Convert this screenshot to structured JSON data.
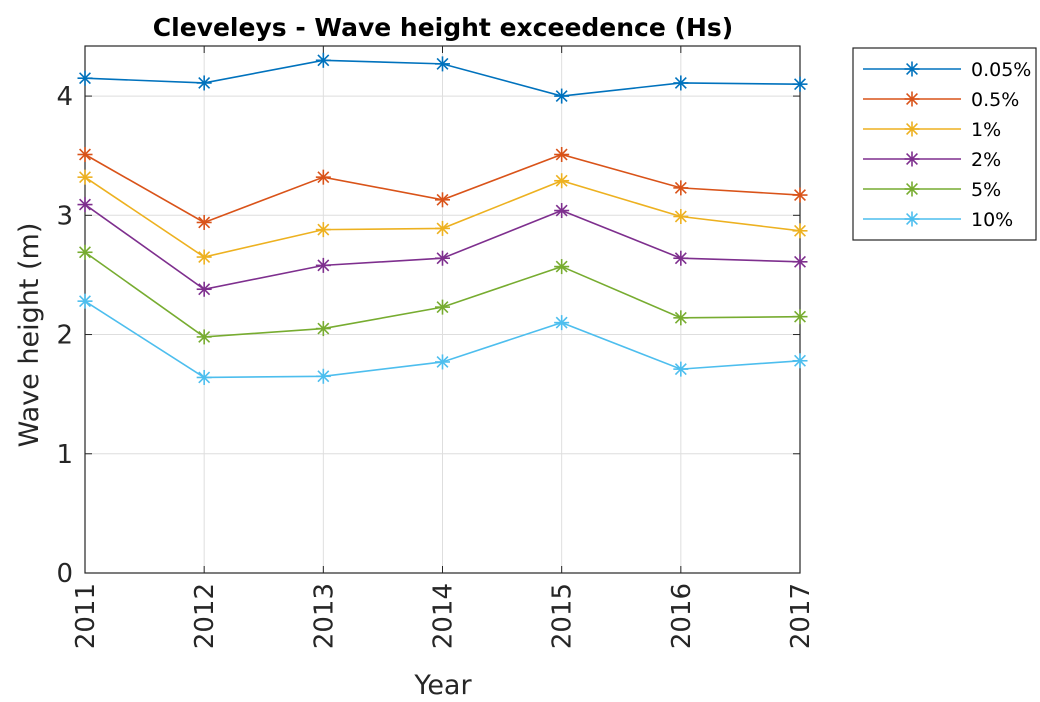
{
  "chart_data": {
    "type": "line",
    "title": "Cleveleys - Wave height exceedence (Hs)",
    "xlabel": "Year",
    "ylabel": "Wave height (m)",
    "categories": [
      "2011",
      "2012",
      "2013",
      "2014",
      "2015",
      "2016",
      "2017"
    ],
    "y_ticks": [
      "0",
      "1",
      "2",
      "3",
      "4"
    ],
    "ylim": [
      0,
      4.42
    ],
    "grid": true,
    "legend_position": "outside-top-right",
    "marker": "asterisk",
    "series": [
      {
        "name": "0.05%",
        "color": "#0072BD",
        "values": [
          4.15,
          4.11,
          4.3,
          4.27,
          4.0,
          4.11,
          4.1
        ]
      },
      {
        "name": "0.5%",
        "color": "#D95319",
        "values": [
          3.51,
          2.94,
          3.32,
          3.13,
          3.51,
          3.23,
          3.17
        ]
      },
      {
        "name": "1%",
        "color": "#EDB120",
        "values": [
          3.32,
          2.65,
          2.88,
          2.89,
          3.29,
          2.99,
          2.87
        ]
      },
      {
        "name": "2%",
        "color": "#7E2F8E",
        "values": [
          3.09,
          2.38,
          2.58,
          2.64,
          3.04,
          2.64,
          2.61
        ]
      },
      {
        "name": "5%",
        "color": "#77AC30",
        "values": [
          2.69,
          1.98,
          2.05,
          2.23,
          2.57,
          2.14,
          2.15
        ]
      },
      {
        "name": "10%",
        "color": "#4DBEEE",
        "values": [
          2.28,
          1.64,
          1.65,
          1.77,
          2.1,
          1.71,
          1.78
        ]
      }
    ]
  }
}
